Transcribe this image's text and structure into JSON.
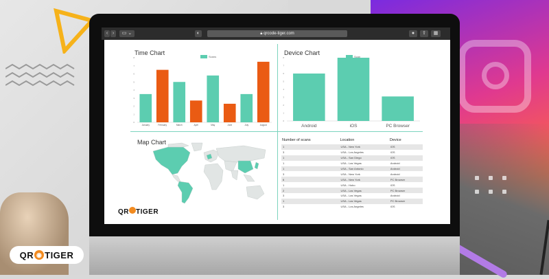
{
  "browser": {
    "url": "qrcode-tiger.com",
    "lock_icon": "lock-icon"
  },
  "brand": {
    "logo_text_left": "QR",
    "logo_text_right": "TIGER",
    "accent": "#f28b20",
    "chart_color_teal": "#5ccdb0",
    "chart_color_orange": "#ea5b13"
  },
  "time_chart": {
    "title": "Time Chart",
    "legend": "Scans",
    "y_ticks": [
      "8",
      "7",
      "6",
      "5",
      "4",
      "3",
      "2",
      "1",
      "0"
    ]
  },
  "device_chart": {
    "title": "Device Chart",
    "legend": "Scan",
    "y_ticks": [
      "8",
      "7",
      "6",
      "5",
      "4",
      "3",
      "2",
      "1",
      "0"
    ]
  },
  "map_chart": {
    "title": "Map Chart"
  },
  "table": {
    "headers": [
      "Number of scans",
      "Location",
      "Device"
    ],
    "rows": [
      [
        "1",
        "USA - New York",
        "iOS"
      ],
      [
        "3",
        "USA - Los Angeles",
        "iOS"
      ],
      [
        "1",
        "USA - San Diego",
        "iOS"
      ],
      [
        "1",
        "USA - Las Vegas",
        "Android"
      ],
      [
        "1",
        "USA - San Antonio",
        "Android"
      ],
      [
        "3",
        "USA - New York",
        "Android"
      ],
      [
        "6",
        "USA - New York",
        "PC Browser"
      ],
      [
        "1",
        "USA - Hobo",
        "iOS"
      ],
      [
        "2",
        "USA - Las Vegas",
        "PC Browser"
      ],
      [
        "3",
        "USA - Las Vegas",
        "Android"
      ],
      [
        "1",
        "USA - Las Vegas",
        "PC Browser"
      ],
      [
        "3",
        "USA - Los Angeles",
        "iOS"
      ]
    ]
  },
  "chart_data": [
    {
      "type": "bar",
      "title": "Time Chart",
      "categories": [
        "January",
        "February",
        "March",
        "April",
        "May",
        "June",
        "July",
        "August"
      ],
      "series": [
        {
          "name": "Scans",
          "values": [
            3.5,
            6.5,
            5,
            2.7,
            5.8,
            2.3,
            3.5,
            7.5
          ]
        }
      ],
      "bar_colors": [
        "#5ccdb0",
        "#ea5b13",
        "#5ccdb0",
        "#ea5b13",
        "#5ccdb0",
        "#ea5b13",
        "#5ccdb0",
        "#ea5b13"
      ],
      "ylim": [
        0,
        8
      ],
      "legend": "top"
    },
    {
      "type": "bar",
      "title": "Device Chart",
      "categories": [
        "Android",
        "iOS",
        "PC Browser"
      ],
      "series": [
        {
          "name": "Scan",
          "values": [
            6,
            8,
            3.1
          ]
        }
      ],
      "ylim": [
        0,
        8
      ],
      "legend": "top"
    }
  ]
}
